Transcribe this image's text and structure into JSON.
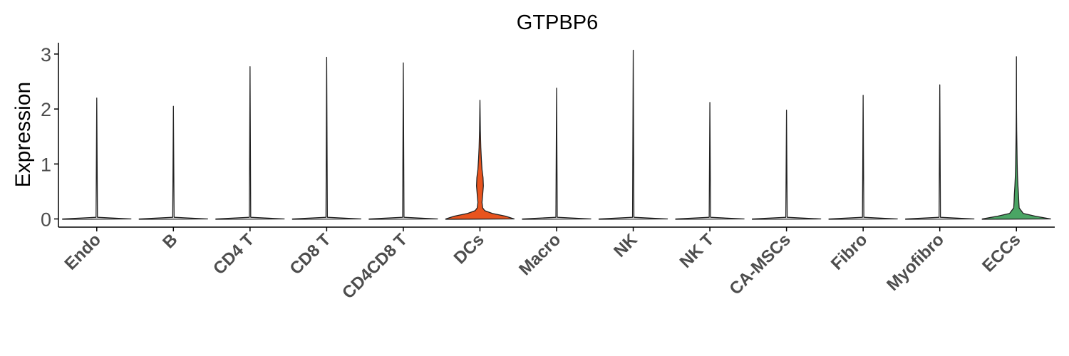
{
  "chart_data": {
    "type": "violin",
    "title": "GTPBP6",
    "xlabel": "",
    "ylabel": "Expression",
    "ylim": [
      0,
      3.25
    ],
    "yticks": [
      "0",
      "1",
      "2",
      "3"
    ],
    "legend": "none",
    "grid": false,
    "categories": [
      "Endo",
      "B",
      "CD4 T",
      "CD8 T",
      "CD4CD8 T",
      "DCs",
      "Macro",
      "NK",
      "NK T",
      "CA-MSCs",
      "Fibro",
      "Myofibro",
      "ECCs"
    ],
    "max_values": [
      2.2,
      2.05,
      2.77,
      2.94,
      2.84,
      2.16,
      2.38,
      3.07,
      2.12,
      1.98,
      2.25,
      2.44,
      2.95
    ],
    "fill_colors": [
      "#ffffff",
      "#ffffff",
      "#ffffff",
      "#ffffff",
      "#ffffff",
      "#e8541e",
      "#ffffff",
      "#ffffff",
      "#ffffff",
      "#ffffff",
      "#ffffff",
      "#ffffff",
      "#4aa564"
    ],
    "density_profiles": [
      {
        "category": "Endo",
        "profile": [
          [
            0,
            1.0
          ],
          [
            0.03,
            0.02
          ],
          [
            2.2,
            0.0
          ]
        ]
      },
      {
        "category": "B",
        "profile": [
          [
            0,
            1.0
          ],
          [
            0.03,
            0.02
          ],
          [
            2.05,
            0.0
          ]
        ]
      },
      {
        "category": "CD4 T",
        "profile": [
          [
            0,
            1.0
          ],
          [
            0.03,
            0.02
          ],
          [
            2.77,
            0.0
          ]
        ]
      },
      {
        "category": "CD8 T",
        "profile": [
          [
            0,
            1.0
          ],
          [
            0.03,
            0.02
          ],
          [
            2.94,
            0.0
          ]
        ]
      },
      {
        "category": "CD4CD8 T",
        "profile": [
          [
            0,
            1.0
          ],
          [
            0.03,
            0.02
          ],
          [
            2.84,
            0.0
          ]
        ]
      },
      {
        "category": "DCs",
        "profile": [
          [
            0,
            1.0
          ],
          [
            0.05,
            0.75
          ],
          [
            0.1,
            0.36
          ],
          [
            0.15,
            0.14
          ],
          [
            0.2,
            0.08
          ],
          [
            0.3,
            0.06
          ],
          [
            0.45,
            0.08
          ],
          [
            0.6,
            0.1
          ],
          [
            0.75,
            0.09
          ],
          [
            0.9,
            0.06
          ],
          [
            1.1,
            0.04
          ],
          [
            1.3,
            0.025
          ],
          [
            1.6,
            0.012
          ],
          [
            2.16,
            0.0
          ]
        ]
      },
      {
        "category": "Macro",
        "profile": [
          [
            0,
            1.0
          ],
          [
            0.03,
            0.02
          ],
          [
            2.38,
            0.0
          ]
        ]
      },
      {
        "category": "NK",
        "profile": [
          [
            0,
            1.0
          ],
          [
            0.03,
            0.02
          ],
          [
            3.07,
            0.0
          ]
        ]
      },
      {
        "category": "NK T",
        "profile": [
          [
            0,
            1.0
          ],
          [
            0.03,
            0.02
          ],
          [
            2.12,
            0.0
          ]
        ]
      },
      {
        "category": "CA-MSCs",
        "profile": [
          [
            0,
            1.0
          ],
          [
            0.03,
            0.02
          ],
          [
            1.98,
            0.0
          ]
        ]
      },
      {
        "category": "Fibro",
        "profile": [
          [
            0,
            1.0
          ],
          [
            0.03,
            0.02
          ],
          [
            2.25,
            0.0
          ]
        ]
      },
      {
        "category": "Myofibro",
        "profile": [
          [
            0,
            1.0
          ],
          [
            0.03,
            0.02
          ],
          [
            2.44,
            0.0
          ]
        ]
      },
      {
        "category": "ECCs",
        "profile": [
          [
            0,
            1.0
          ],
          [
            0.05,
            0.55
          ],
          [
            0.1,
            0.2
          ],
          [
            0.2,
            0.08
          ],
          [
            0.3,
            0.07
          ],
          [
            0.45,
            0.06
          ],
          [
            0.6,
            0.045
          ],
          [
            0.8,
            0.03
          ],
          [
            1.0,
            0.022
          ],
          [
            1.3,
            0.015
          ],
          [
            1.6,
            0.008
          ],
          [
            2.0,
            0.003
          ],
          [
            2.95,
            0.0
          ]
        ]
      }
    ]
  }
}
